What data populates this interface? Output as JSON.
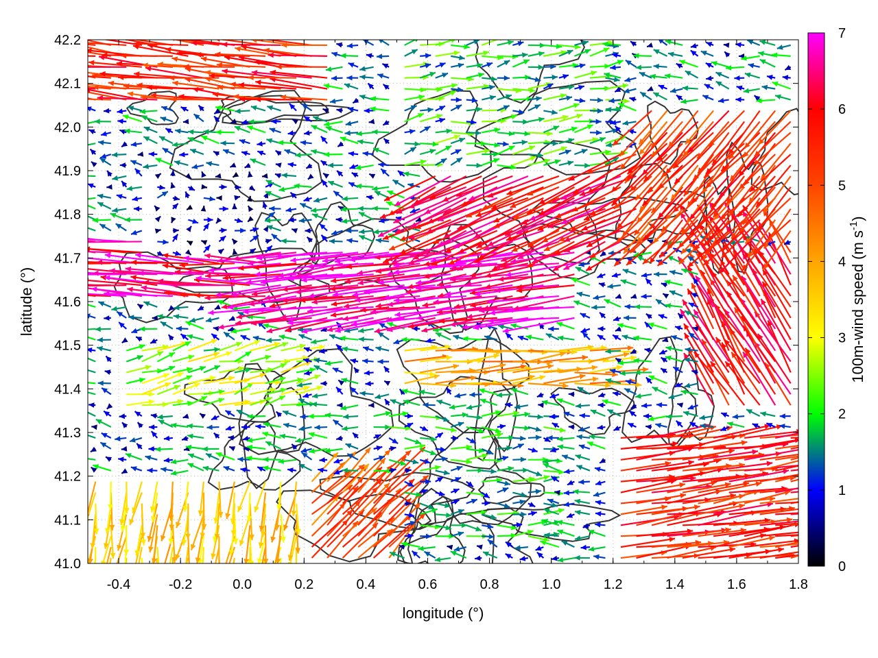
{
  "chart_data": {
    "type": "vector-field",
    "xlabel": "longitude (°)",
    "ylabel": "latitude (°)",
    "xlim": [
      -0.5,
      1.8
    ],
    "ylim": [
      41.0,
      42.2
    ],
    "x_ticks": [
      -0.4,
      -0.2,
      0.0,
      0.2,
      0.4,
      0.6,
      0.8,
      1.0,
      1.2,
      1.4,
      1.6,
      1.8
    ],
    "x_tick_labels": [
      "-0.4",
      "-0.2",
      "0.0",
      "0.2",
      "0.4",
      "0.6",
      "0.8",
      "1.0",
      "1.2",
      "1.4",
      "1.6",
      "1.8"
    ],
    "y_ticks": [
      41.0,
      41.1,
      41.2,
      41.3,
      41.4,
      41.5,
      41.6,
      41.7,
      41.8,
      41.9,
      42.0,
      42.1,
      42.2
    ],
    "y_tick_labels": [
      "41.0",
      "41.1",
      "41.2",
      "41.3",
      "41.4",
      "41.5",
      "41.6",
      "41.7",
      "41.8",
      "41.9",
      "42.0",
      "42.1",
      "42.2"
    ],
    "grid": true,
    "colorbar": {
      "label_main": "100m-wind speed (m s",
      "label_sup": "-1",
      "label_close": ")",
      "min": 0,
      "max": 7,
      "ticks": [
        0,
        1,
        2,
        3,
        4,
        5,
        6,
        7
      ],
      "tick_labels": [
        "0",
        "1",
        "2",
        "3",
        "4",
        "5",
        "6",
        "7"
      ],
      "colors": [
        "#000000",
        "#0000ff",
        "#00ff00",
        "#ffff00",
        "#ffa500",
        "#ff4500",
        "#ff0000",
        "#ff00ff"
      ]
    },
    "contour_color": "#333333",
    "vector_regions": [
      {
        "lon": [
          -0.5,
          0.1
        ],
        "lat": [
          41.6,
          41.75
        ],
        "u": -6.5,
        "v": 0.4
      },
      {
        "lon": [
          0.1,
          1.1
        ],
        "lat": [
          41.55,
          41.72
        ],
        "u": -6.8,
        "v": -0.9
      },
      {
        "lon": [
          0.6,
          1.3
        ],
        "lat": [
          41.72,
          41.95
        ],
        "u": -5.5,
        "v": -2.5
      },
      {
        "lon": [
          1.3,
          1.8
        ],
        "lat": [
          41.75,
          42.05
        ],
        "u": -3.5,
        "v": -4.0
      },
      {
        "lon": [
          1.5,
          1.8
        ],
        "lat": [
          41.35,
          41.72
        ],
        "u": -3.0,
        "v": 5.0
      },
      {
        "lon": [
          -0.5,
          0.3
        ],
        "lat": [
          42.05,
          42.2
        ],
        "u": -5.5,
        "v": 0.6
      },
      {
        "lon": [
          -0.3,
          0.1
        ],
        "lat": [
          41.7,
          41.9
        ],
        "u": 0.4,
        "v": 0.2
      },
      {
        "lon": [
          -0.4,
          0.2
        ],
        "lat": [
          41.35,
          41.5
        ],
        "u": 2.5,
        "v": 0.6
      },
      {
        "lon": [
          0.4,
          1.0
        ],
        "lat": [
          41.05,
          41.35
        ],
        "u": 1.5,
        "v": 0.0
      },
      {
        "lon": [
          1.2,
          1.8
        ],
        "lat": [
          41.0,
          41.3
        ],
        "u": 5.5,
        "v": 0.8
      },
      {
        "lon": [
          0.1,
          0.5
        ],
        "lat": [
          41.0,
          41.2
        ],
        "u": 3.5,
        "v": 3.5
      },
      {
        "lon": [
          -0.5,
          0.2
        ],
        "lat": [
          41.0,
          41.2
        ],
        "u": -0.5,
        "v": -3.5
      },
      {
        "lon": [
          0.5,
          1.2
        ],
        "lat": [
          41.9,
          42.2
        ],
        "u": 1.8,
        "v": 0.3
      },
      {
        "lon": [
          0.5,
          1.2
        ],
        "lat": [
          41.4,
          41.5
        ],
        "u": 4.0,
        "v": 0.3
      }
    ]
  }
}
